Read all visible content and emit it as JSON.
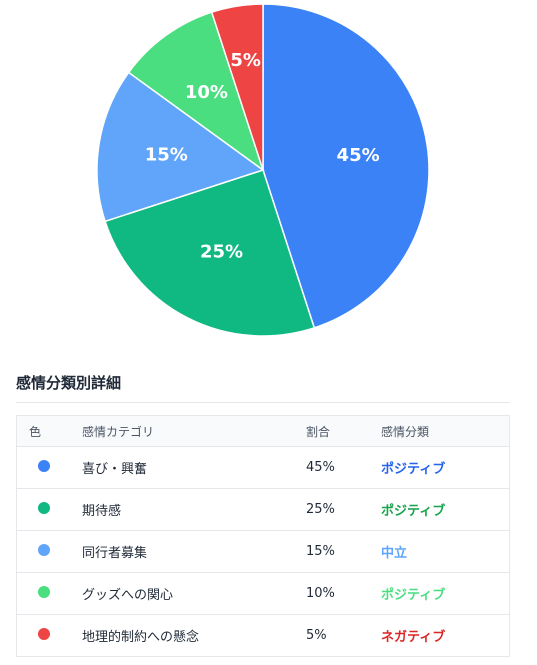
{
  "chart_data": {
    "type": "pie",
    "categories": [
      "喜び・興奮",
      "期待感",
      "同行者募集",
      "グッズへの関心",
      "地理的制約への懸念"
    ],
    "values": [
      45,
      25,
      15,
      10,
      5
    ],
    "labels": [
      "45%",
      "25%",
      "15%",
      "10%",
      "5%"
    ],
    "colors": [
      "#3b82f6",
      "#10b981",
      "#60a5fa",
      "#4ade80",
      "#ef4444"
    ]
  },
  "section": {
    "title": "感情分類別詳細"
  },
  "table": {
    "headers": {
      "color": "色",
      "category": "感情カテゴリ",
      "ratio": "割合",
      "type": "感情分類"
    },
    "rows": [
      {
        "category": "喜び・興奮",
        "ratio": "45%",
        "type": "ポジティブ",
        "type_color": "#2563eb",
        "dot_color": "#3b82f6"
      },
      {
        "category": "期待感",
        "ratio": "25%",
        "type": "ポジティブ",
        "type_color": "#16a34a",
        "dot_color": "#10b981"
      },
      {
        "category": "同行者募集",
        "ratio": "15%",
        "type": "中立",
        "type_color": "#60a5fa",
        "dot_color": "#60a5fa"
      },
      {
        "category": "グッズへの関心",
        "ratio": "10%",
        "type": "ポジティブ",
        "type_color": "#4ade80",
        "dot_color": "#4ade80"
      },
      {
        "category": "地理的制約への懸念",
        "ratio": "5%",
        "type": "ネガティブ",
        "type_color": "#dc2626",
        "dot_color": "#ef4444"
      }
    ]
  }
}
